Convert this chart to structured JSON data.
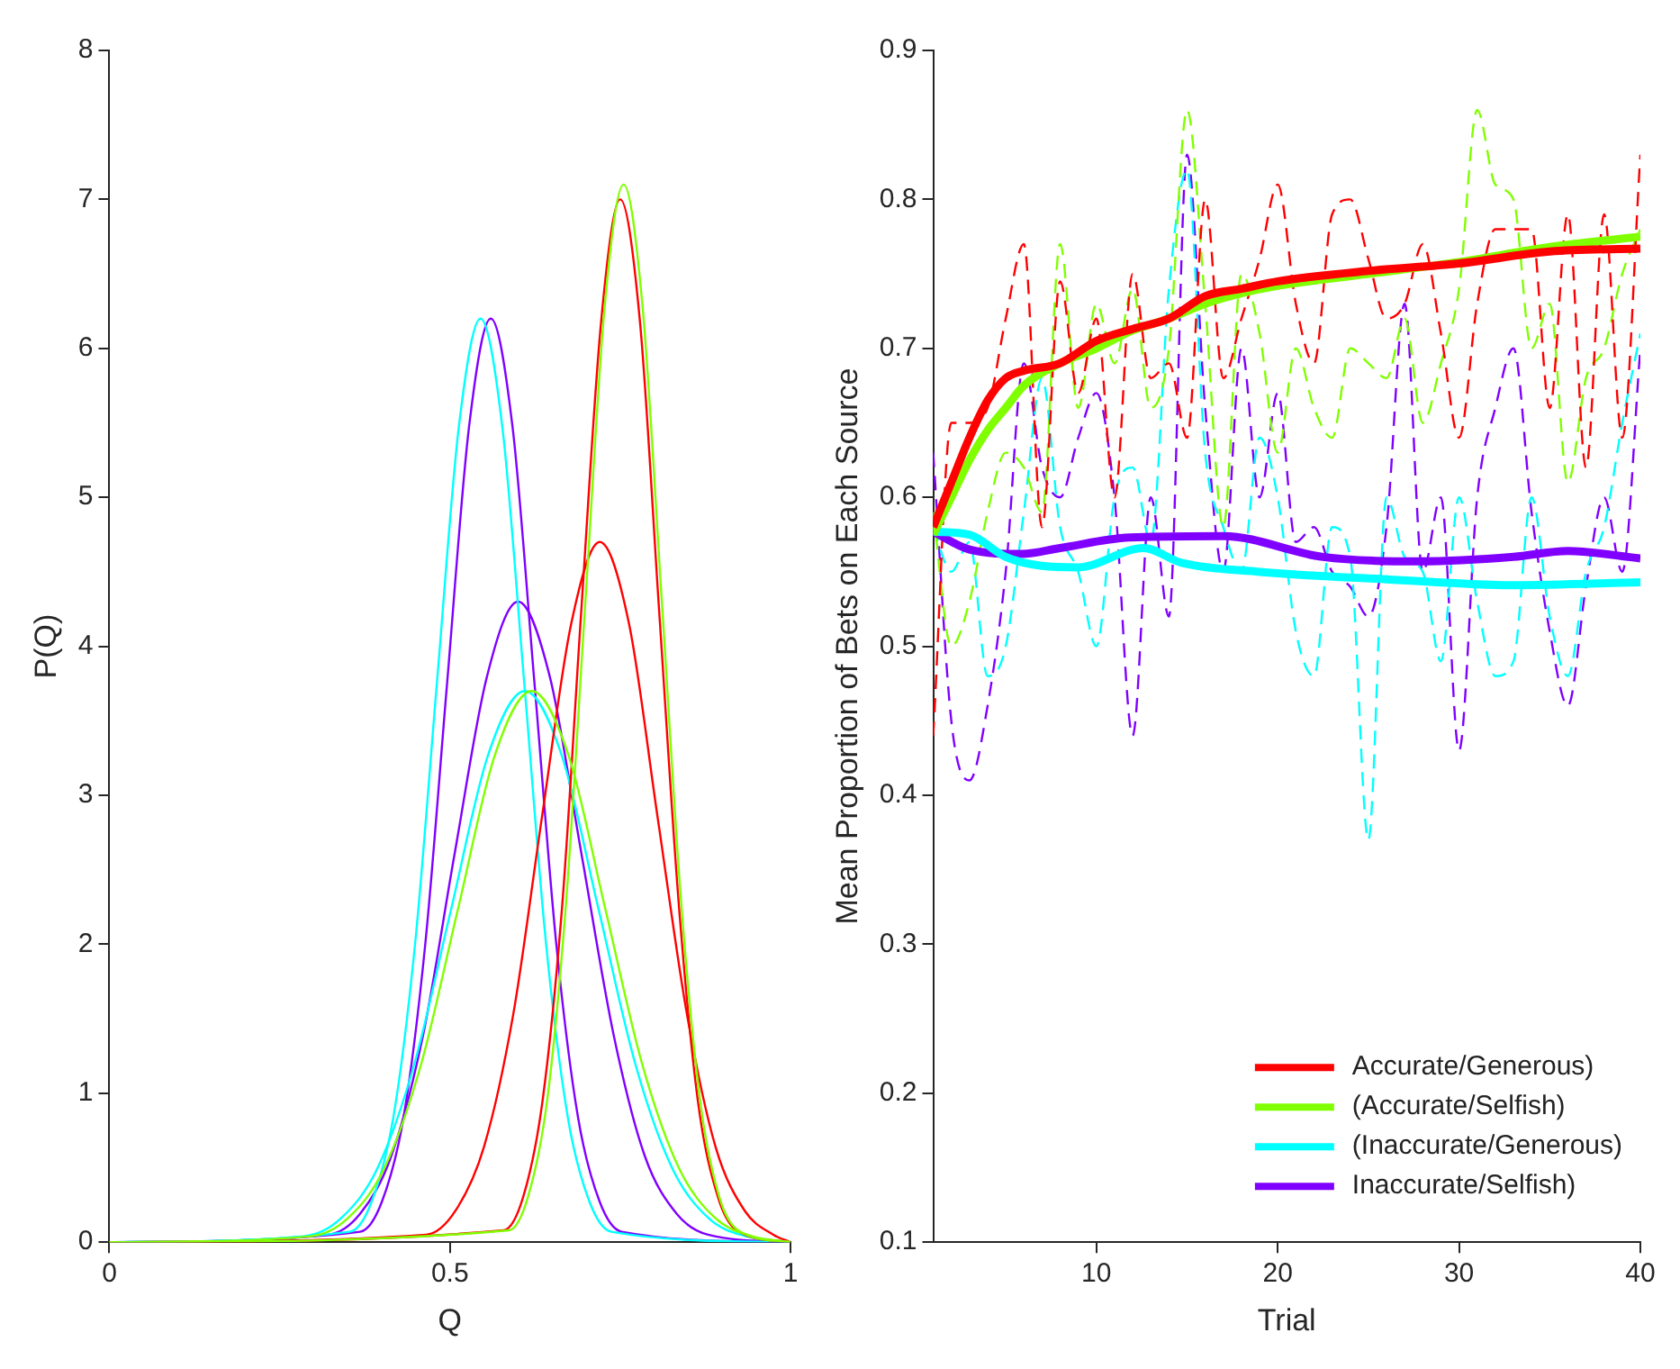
{
  "chart_data": [
    {
      "type": "line",
      "xlabel": "Q",
      "ylabel": "P(Q)",
      "xlim": [
        0,
        1
      ],
      "xticks": [
        0,
        0.5,
        1
      ],
      "ylim": [
        0,
        8
      ],
      "yticks": [
        0,
        1,
        2,
        3,
        4,
        5,
        6,
        7,
        8
      ],
      "grid": false,
      "legend": false,
      "series": [
        {
          "color": "#80ff00",
          "x": [
            0,
            0.296,
            0.35,
            0.404,
            0.458,
            0.512,
            0.566,
            0.62,
            0.674,
            0.728,
            0.782,
            0.836,
            0.89,
            0.944,
            1
          ],
          "values": [
            0,
            0.04,
            0.16,
            0.5,
            1.2,
            2.24,
            3.27,
            3.7,
            3.27,
            2.24,
            1.2,
            0.5,
            0.16,
            0.04,
            0
          ]
        },
        {
          "color": "#80ff00",
          "x": [
            0,
            0.587,
            0.615,
            0.643,
            0.671,
            0.699,
            0.727,
            0.755,
            0.783,
            0.811,
            0.839,
            0.867,
            0.895,
            0.923,
            1
          ],
          "values": [
            0,
            0.08,
            0.31,
            0.96,
            2.31,
            4.31,
            6.27,
            7.1,
            6.27,
            4.31,
            2.31,
            0.96,
            0.31,
            0.08,
            0
          ]
        },
        {
          "color": "#ff0000",
          "x": [
            0,
            0.465,
            0.508,
            0.55,
            0.593,
            0.635,
            0.678,
            0.72,
            0.763,
            0.805,
            0.848,
            0.89,
            0.933,
            0.975,
            1
          ],
          "values": [
            0,
            0.05,
            0.21,
            0.64,
            1.53,
            2.85,
            4.15,
            4.7,
            4.15,
            2.85,
            1.53,
            0.64,
            0.21,
            0.05,
            0
          ]
        },
        {
          "color": "#ff0000",
          "x": [
            0,
            0.579,
            0.608,
            0.636,
            0.665,
            0.693,
            0.722,
            0.75,
            0.779,
            0.807,
            0.836,
            0.864,
            0.893,
            0.921,
            1
          ],
          "values": [
            0,
            0.08,
            0.31,
            0.95,
            2.27,
            4.25,
            6.18,
            7.0,
            6.18,
            4.25,
            2.27,
            0.95,
            0.31,
            0.08,
            0
          ]
        },
        {
          "color": "#00ffff",
          "x": [
            0,
            0.286,
            0.34,
            0.394,
            0.448,
            0.502,
            0.556,
            0.61,
            0.664,
            0.718,
            0.772,
            0.826,
            0.88,
            0.934,
            1
          ],
          "values": [
            0,
            0.04,
            0.16,
            0.5,
            1.2,
            2.24,
            3.27,
            3.7,
            3.27,
            2.24,
            1.2,
            0.5,
            0.16,
            0.04,
            0
          ]
        },
        {
          "color": "#00ffff",
          "x": [
            0,
            0.353,
            0.385,
            0.417,
            0.449,
            0.481,
            0.513,
            0.545,
            0.577,
            0.609,
            0.641,
            0.673,
            0.705,
            0.737,
            1
          ],
          "values": [
            0,
            0.07,
            0.27,
            0.84,
            2.01,
            3.76,
            5.47,
            6.2,
            5.47,
            3.76,
            2.01,
            0.84,
            0.27,
            0.07,
            0
          ]
        },
        {
          "color": "#8000ff",
          "x": [
            0,
            0.321,
            0.368,
            0.414,
            0.461,
            0.507,
            0.554,
            0.6,
            0.647,
            0.693,
            0.74,
            0.786,
            0.833,
            0.879,
            1
          ],
          "values": [
            0,
            0.05,
            0.19,
            0.58,
            1.4,
            2.61,
            3.79,
            4.3,
            3.79,
            2.61,
            1.4,
            0.58,
            0.19,
            0.05,
            0
          ]
        },
        {
          "color": "#8000ff",
          "x": [
            0,
            0.368,
            0.4,
            0.432,
            0.464,
            0.496,
            0.528,
            0.56,
            0.592,
            0.624,
            0.656,
            0.688,
            0.72,
            0.752,
            1
          ],
          "values": [
            0,
            0.07,
            0.27,
            0.84,
            2.01,
            3.76,
            5.47,
            6.2,
            5.47,
            3.76,
            2.01,
            0.84,
            0.27,
            0.07,
            0
          ]
        }
      ]
    },
    {
      "type": "line",
      "xlabel": "Trial",
      "ylabel": "Mean Proportion of Bets on Each Source",
      "xlim": [
        1,
        40
      ],
      "xticks": [
        10,
        20,
        30,
        40
      ],
      "ylim": [
        0.1,
        0.9
      ],
      "yticks": [
        0.1,
        0.2,
        0.3,
        0.4,
        0.5,
        0.6,
        0.7,
        0.8,
        0.9
      ],
      "grid": false,
      "legend": "bottom right",
      "x": [
        1,
        2,
        3,
        4,
        5,
        6,
        7,
        8,
        9,
        10,
        11,
        12,
        13,
        14,
        15,
        16,
        17,
        18,
        19,
        20,
        21,
        22,
        23,
        24,
        25,
        26,
        27,
        28,
        29,
        30,
        31,
        32,
        33,
        34,
        35,
        36,
        37,
        38,
        39,
        40
      ],
      "series": [
        {
          "color": "#ff0000",
          "line_style": "dashed",
          "values": [
            0.44,
            0.65,
            0.65,
            0.66,
            0.72,
            0.77,
            0.58,
            0.745,
            0.67,
            0.72,
            0.6,
            0.75,
            0.68,
            0.69,
            0.64,
            0.8,
            0.68,
            0.72,
            0.76,
            0.81,
            0.73,
            0.69,
            0.79,
            0.8,
            0.76,
            0.72,
            0.73,
            0.77,
            0.71,
            0.64,
            0.73,
            0.78,
            0.78,
            0.78,
            0.66,
            0.79,
            0.62,
            0.79,
            0.64,
            0.83
          ]
        },
        {
          "color": "#80ff00",
          "line_style": "dashed",
          "values": [
            0.59,
            0.5,
            0.53,
            0.59,
            0.63,
            0.62,
            0.59,
            0.77,
            0.66,
            0.73,
            0.69,
            0.74,
            0.66,
            0.7,
            0.86,
            0.73,
            0.58,
            0.75,
            0.71,
            0.63,
            0.7,
            0.66,
            0.64,
            0.7,
            0.69,
            0.68,
            0.72,
            0.65,
            0.69,
            0.74,
            0.86,
            0.81,
            0.8,
            0.7,
            0.73,
            0.61,
            0.68,
            0.7,
            0.75,
            0.78
          ]
        },
        {
          "color": "#00ffff",
          "line_style": "dashed",
          "values": [
            0.58,
            0.55,
            0.57,
            0.48,
            0.5,
            0.59,
            0.68,
            0.58,
            0.55,
            0.5,
            0.6,
            0.62,
            0.57,
            0.74,
            0.82,
            0.63,
            0.58,
            0.55,
            0.64,
            0.6,
            0.51,
            0.48,
            0.58,
            0.56,
            0.37,
            0.6,
            0.56,
            0.55,
            0.49,
            0.6,
            0.53,
            0.48,
            0.49,
            0.6,
            0.52,
            0.48,
            0.55,
            0.58,
            0.65,
            0.71
          ]
        },
        {
          "color": "#8000ff",
          "line_style": "dashed",
          "values": [
            0.63,
            0.45,
            0.41,
            0.46,
            0.55,
            0.69,
            0.62,
            0.6,
            0.64,
            0.67,
            0.6,
            0.44,
            0.6,
            0.52,
            0.83,
            0.66,
            0.55,
            0.7,
            0.6,
            0.67,
            0.57,
            0.58,
            0.55,
            0.54,
            0.52,
            0.58,
            0.73,
            0.55,
            0.6,
            0.43,
            0.6,
            0.66,
            0.7,
            0.59,
            0.51,
            0.46,
            0.54,
            0.6,
            0.55,
            0.7
          ]
        },
        {
          "name": "Accurate/Generous)",
          "color": "#ff0000",
          "line_style": "solid",
          "x": [
            1,
            2,
            3,
            4,
            5,
            6,
            8,
            10,
            12,
            14,
            16,
            18,
            20,
            25,
            30,
            35,
            40
          ],
          "values": [
            0.58,
            0.61,
            0.64,
            0.665,
            0.68,
            0.685,
            0.69,
            0.705,
            0.713,
            0.72,
            0.735,
            0.74,
            0.745,
            0.752,
            0.757,
            0.765,
            0.767
          ]
        },
        {
          "name": "(Accurate/Selfish)",
          "color": "#80ff00",
          "line_style": "solid",
          "x": [
            1,
            2,
            3,
            4,
            5,
            6,
            8,
            10,
            12,
            14,
            16,
            18,
            20,
            25,
            30,
            35,
            40
          ],
          "values": [
            0.575,
            0.6,
            0.625,
            0.645,
            0.66,
            0.675,
            0.69,
            0.7,
            0.712,
            0.72,
            0.73,
            0.737,
            0.742,
            0.75,
            0.758,
            0.768,
            0.775
          ]
        },
        {
          "name": "(Inaccurate/Generous)",
          "color": "#00ffff",
          "line_style": "solid",
          "x": [
            1,
            3,
            5,
            7,
            9,
            12.6,
            14.7,
            19,
            26,
            33,
            40
          ],
          "values": [
            0.577,
            0.575,
            0.56,
            0.554,
            0.553,
            0.566,
            0.556,
            0.55,
            0.545,
            0.541,
            0.543
          ]
        },
        {
          "name": "Inaccurate/Selfish)",
          "color": "#8000ff",
          "line_style": "solid",
          "x": [
            1,
            3,
            5.9,
            8,
            11.8,
            17,
            22.5,
            27.8,
            33,
            36,
            40
          ],
          "values": [
            0.577,
            0.565,
            0.562,
            0.566,
            0.573,
            0.574,
            0.56,
            0.557,
            0.56,
            0.564,
            0.559
          ]
        }
      ]
    }
  ]
}
